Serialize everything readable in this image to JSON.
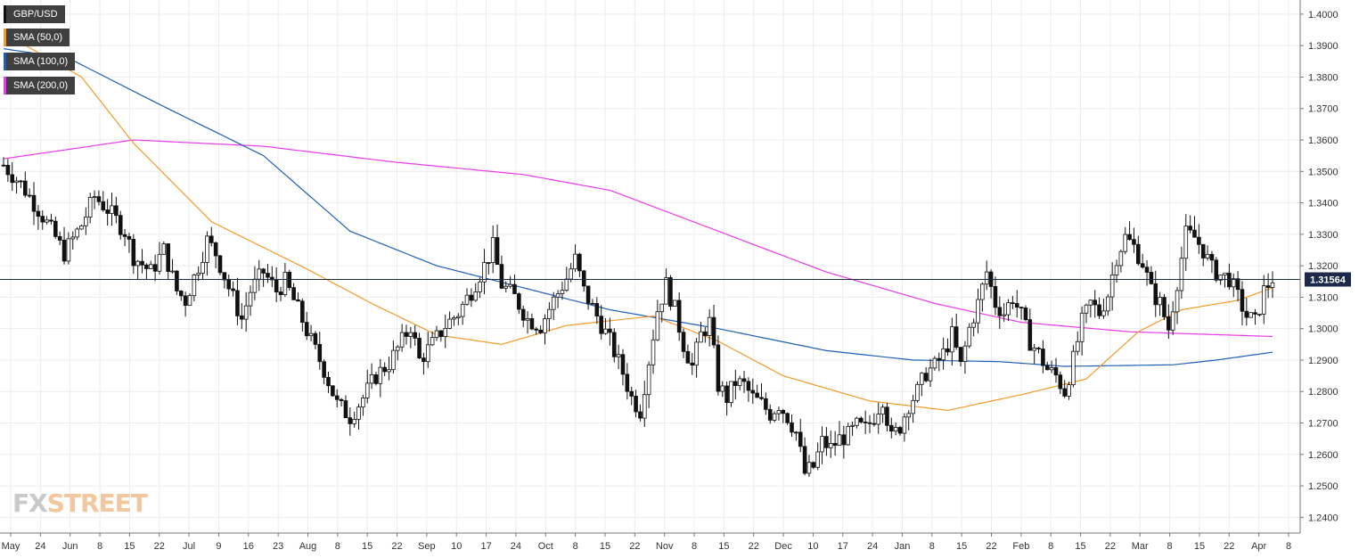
{
  "legend": [
    {
      "label": "GBP/USD",
      "color": "#111111"
    },
    {
      "label": "SMA (50,0)",
      "color": "#f39a2b"
    },
    {
      "label": "SMA (100,0)",
      "color": "#1f5fb5"
    },
    {
      "label": "SMA (200,0)",
      "color": "#e83be8"
    }
  ],
  "watermark": {
    "fx": "FX",
    "street": "STREET"
  },
  "chart_data": {
    "type": "candlestick",
    "symbol": "GBP/USD",
    "timeframe": "daily",
    "ylim": [
      1.235,
      1.4045
    ],
    "y_ticks": [
      "1.4000",
      "1.3900",
      "1.3800",
      "1.3700",
      "1.3600",
      "1.3500",
      "1.3400",
      "1.3300",
      "1.3200",
      "1.3100",
      "1.3000",
      "1.2900",
      "1.2800",
      "1.2700",
      "1.2600",
      "1.2500",
      "1.2400"
    ],
    "x_ticks": [
      "May",
      "24",
      "Jun",
      "8",
      "15",
      "22",
      "Jul",
      "9",
      "16",
      "23",
      "Aug",
      "8",
      "15",
      "22",
      "Sep",
      "10",
      "17",
      "24",
      "Oct",
      "8",
      "15",
      "22",
      "Nov",
      "8",
      "15",
      "22",
      "Dec",
      "10",
      "17",
      "24",
      "Jan",
      "8",
      "15",
      "22",
      "Feb",
      "8",
      "15",
      "22",
      "Mar",
      "8",
      "15",
      "22",
      "Apr",
      "8"
    ],
    "current_price": "1.31564",
    "current_price_value": 1.31564,
    "grid": true,
    "ohlc_keyframes": [
      [
        0,
        1.352
      ],
      [
        4,
        1.346
      ],
      [
        8,
        1.338
      ],
      [
        12,
        1.329
      ],
      [
        14,
        1.324
      ],
      [
        18,
        1.333
      ],
      [
        21,
        1.342
      ],
      [
        24,
        1.338
      ],
      [
        28,
        1.331
      ],
      [
        30,
        1.323
      ],
      [
        34,
        1.318
      ],
      [
        37,
        1.325
      ],
      [
        40,
        1.312
      ],
      [
        42,
        1.309
      ],
      [
        45,
        1.32
      ],
      [
        47,
        1.328
      ],
      [
        49,
        1.324
      ],
      [
        52,
        1.313
      ],
      [
        55,
        1.303
      ],
      [
        57,
        1.312
      ],
      [
        60,
        1.318
      ],
      [
        63,
        1.312
      ],
      [
        65,
        1.315
      ],
      [
        68,
        1.306
      ],
      [
        71,
        1.296
      ],
      [
        74,
        1.287
      ],
      [
        77,
        1.276
      ],
      [
        80,
        1.272
      ],
      [
        83,
        1.278
      ],
      [
        86,
        1.285
      ],
      [
        89,
        1.289
      ],
      [
        92,
        1.296
      ],
      [
        94,
        1.301
      ],
      [
        96,
        1.29
      ],
      [
        99,
        1.295
      ],
      [
        102,
        1.301
      ],
      [
        105,
        1.305
      ],
      [
        108,
        1.312
      ],
      [
        111,
        1.32
      ],
      [
        113,
        1.326
      ],
      [
        115,
        1.314
      ],
      [
        118,
        1.31
      ],
      [
        121,
        1.303
      ],
      [
        124,
        1.301
      ],
      [
        127,
        1.309
      ],
      [
        130,
        1.316
      ],
      [
        132,
        1.322
      ],
      [
        134,
        1.312
      ],
      [
        137,
        1.304
      ],
      [
        140,
        1.296
      ],
      [
        143,
        1.286
      ],
      [
        145,
        1.278
      ],
      [
        147,
        1.274
      ],
      [
        149,
        1.29
      ],
      [
        151,
        1.306
      ],
      [
        153,
        1.314
      ],
      [
        155,
        1.306
      ],
      [
        157,
        1.295
      ],
      [
        159,
        1.288
      ],
      [
        161,
        1.298
      ],
      [
        163,
        1.302
      ],
      [
        165,
        1.282
      ],
      [
        167,
        1.278
      ],
      [
        169,
        1.283
      ],
      [
        171,
        1.282
      ],
      [
        173,
        1.278
      ],
      [
        175,
        1.276
      ],
      [
        177,
        1.273
      ],
      [
        179,
        1.276
      ],
      [
        181,
        1.272
      ],
      [
        183,
        1.267
      ],
      [
        185,
        1.254
      ],
      [
        187,
        1.256
      ],
      [
        189,
        1.264
      ],
      [
        191,
        1.262
      ],
      [
        193,
        1.265
      ],
      [
        195,
        1.266
      ],
      [
        197,
        1.269
      ],
      [
        199,
        1.268
      ],
      [
        201,
        1.272
      ],
      [
        203,
        1.278
      ],
      [
        205,
        1.265
      ],
      [
        207,
        1.269
      ],
      [
        209,
        1.276
      ],
      [
        211,
        1.28
      ],
      [
        213,
        1.286
      ],
      [
        215,
        1.288
      ],
      [
        217,
        1.292
      ],
      [
        219,
        1.298
      ],
      [
        221,
        1.288
      ],
      [
        223,
        1.3
      ],
      [
        225,
        1.308
      ],
      [
        227,
        1.318
      ],
      [
        229,
        1.308
      ],
      [
        231,
        1.305
      ],
      [
        233,
        1.31
      ],
      [
        235,
        1.304
      ],
      [
        237,
        1.296
      ],
      [
        239,
        1.292
      ],
      [
        241,
        1.287
      ],
      [
        243,
        1.285
      ],
      [
        245,
        1.28
      ],
      [
        247,
        1.29
      ],
      [
        249,
        1.302
      ],
      [
        251,
        1.308
      ],
      [
        253,
        1.305
      ],
      [
        255,
        1.311
      ],
      [
        257,
        1.323
      ],
      [
        259,
        1.329
      ],
      [
        261,
        1.326
      ],
      [
        263,
        1.321
      ],
      [
        265,
        1.312
      ],
      [
        267,
        1.308
      ],
      [
        269,
        1.3
      ],
      [
        271,
        1.315
      ],
      [
        273,
        1.33
      ],
      [
        275,
        1.329
      ],
      [
        277,
        1.325
      ],
      [
        279,
        1.319
      ],
      [
        281,
        1.317
      ],
      [
        283,
        1.316
      ],
      [
        285,
        1.31
      ],
      [
        287,
        1.304
      ],
      [
        289,
        1.302
      ],
      [
        291,
        1.312
      ],
      [
        293,
        1.316
      ]
    ],
    "sma_200": [
      [
        0,
        1.354
      ],
      [
        30,
        1.36
      ],
      [
        60,
        1.358
      ],
      [
        90,
        1.353
      ],
      [
        120,
        1.349
      ],
      [
        140,
        1.344
      ],
      [
        165,
        1.331
      ],
      [
        190,
        1.318
      ],
      [
        215,
        1.308
      ],
      [
        235,
        1.302
      ],
      [
        260,
        1.299
      ],
      [
        293,
        1.2975
      ]
    ],
    "sma_100": [
      [
        0,
        1.389
      ],
      [
        15,
        1.386
      ],
      [
        35,
        1.372
      ],
      [
        60,
        1.355
      ],
      [
        80,
        1.331
      ],
      [
        100,
        1.32
      ],
      [
        120,
        1.313
      ],
      [
        140,
        1.306
      ],
      [
        165,
        1.3
      ],
      [
        190,
        1.293
      ],
      [
        210,
        1.29
      ],
      [
        230,
        1.2895
      ],
      [
        245,
        1.288
      ],
      [
        270,
        1.2885
      ],
      [
        280,
        1.29
      ],
      [
        293,
        1.2925
      ]
    ],
    "sma_50": [
      [
        0,
        1.394
      ],
      [
        18,
        1.38
      ],
      [
        30,
        1.359
      ],
      [
        48,
        1.334
      ],
      [
        70,
        1.319
      ],
      [
        85,
        1.308
      ],
      [
        100,
        1.298
      ],
      [
        115,
        1.295
      ],
      [
        130,
        1.301
      ],
      [
        150,
        1.304
      ],
      [
        165,
        1.296
      ],
      [
        180,
        1.285
      ],
      [
        200,
        1.277
      ],
      [
        218,
        1.274
      ],
      [
        235,
        1.279
      ],
      [
        250,
        1.284
      ],
      [
        262,
        1.299
      ],
      [
        272,
        1.306
      ],
      [
        285,
        1.309
      ],
      [
        293,
        1.313
      ]
    ]
  }
}
